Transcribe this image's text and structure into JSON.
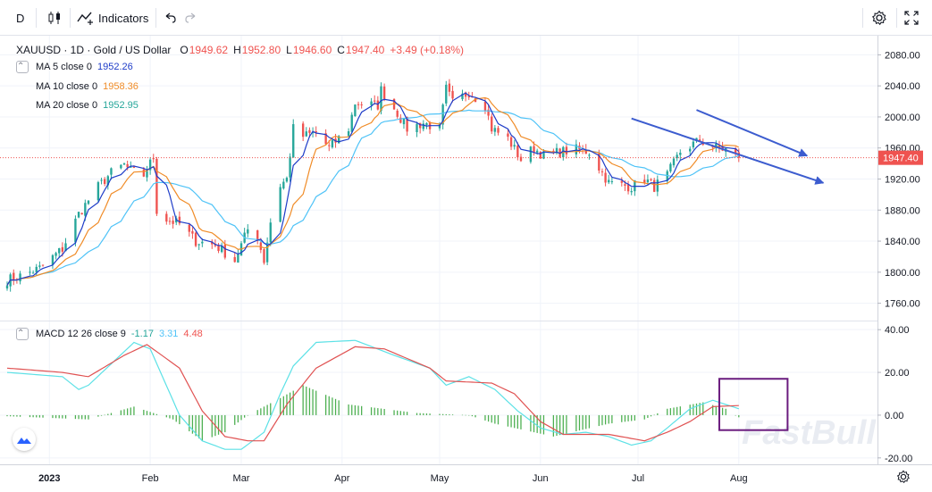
{
  "toolbar": {
    "interval_label": "D",
    "indicators_label": "Indicators"
  },
  "symbol": {
    "title": "XAUUSD · 1D · Gold / US Dollar",
    "o_label": "O",
    "o_value": "1949.62",
    "h_label": "H",
    "h_value": "1952.80",
    "l_label": "L",
    "l_value": "1946.60",
    "c_label": "C",
    "c_value": "1947.40",
    "change": "+3.49 (+0.18%)"
  },
  "legend": {
    "ma5_label": "MA 5 close 0",
    "ma5_value": "1952.26",
    "ma10_label": "MA 10 close 0",
    "ma10_value": "1958.36",
    "ma20_label": "MA 20 close 0",
    "ma20_value": "1952.95",
    "macd_label": "MACD 12 26 close 9",
    "macd_hist": "-1.17",
    "macd_line": "3.31",
    "macd_signal": "4.48",
    "collapse_glyph": "⌃"
  },
  "watermark": "FastBull",
  "colors": {
    "up": "#26a69a",
    "down": "#ef5350",
    "ma5": "#1e3cc8",
    "ma10": "#f08c28",
    "ma20": "#4fc3f7",
    "macd_line": "#5ce1e6",
    "signal_line": "#e05252",
    "hist_up": "#4caf50",
    "trend_arrow": "#3c5ccf",
    "highlight_box": "#6a1b7e",
    "price_line": "#ef5350"
  },
  "chart_data": [
    {
      "type": "candlestick",
      "symbol": "XAUUSD",
      "interval": "1D",
      "current_price": 1947.4,
      "price_label": "1947.40",
      "ylim": [
        1740,
        2100
      ],
      "y_ticks": [
        "2080.00",
        "2040.00",
        "2000.00",
        "1960.00",
        "1920.00",
        "1880.00",
        "1840.00",
        "1800.00",
        "1760.00"
      ],
      "x_ticks": [
        "2023",
        "Feb",
        "Mar",
        "Apr",
        "May",
        "Jun",
        "Jul",
        "Aug"
      ],
      "price_path": [
        [
          "2022-12-19",
          1790
        ],
        [
          "2022-12-23",
          1795
        ],
        [
          "2022-12-29",
          1805
        ],
        [
          "2023-01-05",
          1830
        ],
        [
          "2023-01-10",
          1875
        ],
        [
          "2023-01-16",
          1910
        ],
        [
          "2023-01-20",
          1928
        ],
        [
          "2023-01-24",
          1938
        ],
        [
          "2023-01-26",
          1930
        ],
        [
          "2023-01-30",
          1925
        ],
        [
          "2023-02-02",
          1948
        ],
        [
          "2023-02-03",
          1880
        ],
        [
          "2023-02-06",
          1868
        ],
        [
          "2023-02-10",
          1862
        ],
        [
          "2023-02-15",
          1840
        ],
        [
          "2023-02-21",
          1835
        ],
        [
          "2023-02-27",
          1815
        ],
        [
          "2023-03-01",
          1835
        ],
        [
          "2023-03-03",
          1855
        ],
        [
          "2023-03-06",
          1845
        ],
        [
          "2023-03-08",
          1815
        ],
        [
          "2023-03-10",
          1865
        ],
        [
          "2023-03-13",
          1912
        ],
        [
          "2023-03-15",
          1920
        ],
        [
          "2023-03-17",
          1985
        ],
        [
          "2023-03-20",
          1975
        ],
        [
          "2023-03-24",
          1980
        ],
        [
          "2023-03-28",
          1960
        ],
        [
          "2023-04-03",
          1985
        ],
        [
          "2023-04-05",
          2018
        ],
        [
          "2023-04-12",
          2015
        ],
        [
          "2023-04-13",
          2035
        ],
        [
          "2023-04-18",
          2005
        ],
        [
          "2023-04-21",
          1985
        ],
        [
          "2023-04-26",
          1992
        ],
        [
          "2023-05-01",
          1985
        ],
        [
          "2023-05-03",
          2036
        ],
        [
          "2023-05-05",
          2018
        ],
        [
          "2023-05-10",
          2032
        ],
        [
          "2023-05-15",
          2015
        ],
        [
          "2023-05-17",
          1985
        ],
        [
          "2023-05-22",
          1972
        ],
        [
          "2023-05-26",
          1945
        ],
        [
          "2023-05-30",
          1960
        ],
        [
          "2023-06-02",
          1950
        ],
        [
          "2023-06-07",
          1955
        ],
        [
          "2023-06-12",
          1958
        ],
        [
          "2023-06-16",
          1955
        ],
        [
          "2023-06-22",
          1915
        ],
        [
          "2023-06-29",
          1910
        ],
        [
          "2023-07-03",
          1920
        ],
        [
          "2023-07-06",
          1910
        ],
        [
          "2023-07-10",
          1925
        ],
        [
          "2023-07-14",
          1955
        ],
        [
          "2023-07-20",
          1970
        ],
        [
          "2023-07-25",
          1960
        ],
        [
          "2023-07-28",
          1958
        ],
        [
          "2023-08-01",
          1947
        ]
      ],
      "annotations": [
        {
          "type": "arrow",
          "from": [
            "2023-06-29",
            1998
          ],
          "to": [
            "2023-08-27",
            1915
          ]
        },
        {
          "type": "arrow",
          "from": [
            "2023-07-19",
            2009
          ],
          "to": [
            "2023-08-22",
            1950
          ]
        }
      ]
    },
    {
      "type": "line+histogram",
      "indicator": "MACD 12 26 close 9",
      "ylim": [
        -23,
        43
      ],
      "y_ticks": [
        "40.00",
        "20.00",
        "0.00",
        "-20.00"
      ],
      "macd_line": [
        [
          "2022-12-19",
          20
        ],
        [
          "2023-01-05",
          18
        ],
        [
          "2023-01-10",
          12
        ],
        [
          "2023-01-13",
          14
        ],
        [
          "2023-01-20",
          24
        ],
        [
          "2023-01-27",
          34
        ],
        [
          "2023-02-01",
          31
        ],
        [
          "2023-02-10",
          0
        ],
        [
          "2023-02-17",
          -12
        ],
        [
          "2023-02-24",
          -16
        ],
        [
          "2023-03-01",
          -16
        ],
        [
          "2023-03-08",
          -8
        ],
        [
          "2023-03-13",
          10
        ],
        [
          "2023-03-17",
          23
        ],
        [
          "2023-03-24",
          34
        ],
        [
          "2023-04-05",
          35
        ],
        [
          "2023-04-17",
          28
        ],
        [
          "2023-04-28",
          22
        ],
        [
          "2023-05-03",
          14
        ],
        [
          "2023-05-10",
          18
        ],
        [
          "2023-05-18",
          12
        ],
        [
          "2023-05-25",
          2
        ],
        [
          "2023-06-01",
          -6
        ],
        [
          "2023-06-08",
          -9
        ],
        [
          "2023-06-15",
          -8
        ],
        [
          "2023-06-22",
          -10
        ],
        [
          "2023-06-29",
          -14
        ],
        [
          "2023-07-05",
          -12
        ],
        [
          "2023-07-10",
          -6
        ],
        [
          "2023-07-17",
          3
        ],
        [
          "2023-07-24",
          7
        ],
        [
          "2023-08-01",
          3
        ]
      ],
      "signal_line": [
        [
          "2022-12-19",
          22
        ],
        [
          "2023-01-05",
          20
        ],
        [
          "2023-01-13",
          18
        ],
        [
          "2023-01-24",
          28
        ],
        [
          "2023-01-31",
          33
        ],
        [
          "2023-02-10",
          22
        ],
        [
          "2023-02-17",
          2
        ],
        [
          "2023-02-24",
          -10
        ],
        [
          "2023-03-03",
          -12
        ],
        [
          "2023-03-08",
          -12
        ],
        [
          "2023-03-15",
          5
        ],
        [
          "2023-03-24",
          22
        ],
        [
          "2023-04-05",
          32
        ],
        [
          "2023-04-14",
          31
        ],
        [
          "2023-04-28",
          22
        ],
        [
          "2023-05-03",
          16
        ],
        [
          "2023-05-17",
          15
        ],
        [
          "2023-05-24",
          10
        ],
        [
          "2023-06-01",
          -3
        ],
        [
          "2023-06-08",
          -9
        ],
        [
          "2023-06-22",
          -9
        ],
        [
          "2023-07-03",
          -12
        ],
        [
          "2023-07-10",
          -8
        ],
        [
          "2023-07-17",
          -3
        ],
        [
          "2023-07-24",
          4
        ],
        [
          "2023-08-01",
          4.5
        ]
      ],
      "hist_path": [
        [
          "2022-12-19",
          -0.5
        ],
        [
          "2023-01-13",
          -2
        ],
        [
          "2023-01-27",
          4
        ],
        [
          "2023-02-08",
          -2
        ],
        [
          "2023-02-17",
          -12
        ],
        [
          "2023-02-24",
          -8
        ],
        [
          "2023-03-03",
          0
        ],
        [
          "2023-03-13",
          8
        ],
        [
          "2023-03-20",
          14
        ],
        [
          "2023-04-03",
          5
        ],
        [
          "2023-04-24",
          1
        ],
        [
          "2023-05-10",
          0
        ],
        [
          "2023-05-18",
          -4
        ],
        [
          "2023-06-05",
          -10
        ],
        [
          "2023-06-22",
          -4
        ],
        [
          "2023-07-03",
          -2
        ],
        [
          "2023-07-10",
          3
        ],
        [
          "2023-07-21",
          6
        ],
        [
          "2023-07-28",
          3
        ],
        [
          "2023-08-01",
          -1
        ]
      ],
      "annotations": [
        {
          "type": "box",
          "x0": "2023-07-26",
          "x1": "2023-08-16",
          "y0": -7,
          "y1": 17
        }
      ]
    }
  ]
}
